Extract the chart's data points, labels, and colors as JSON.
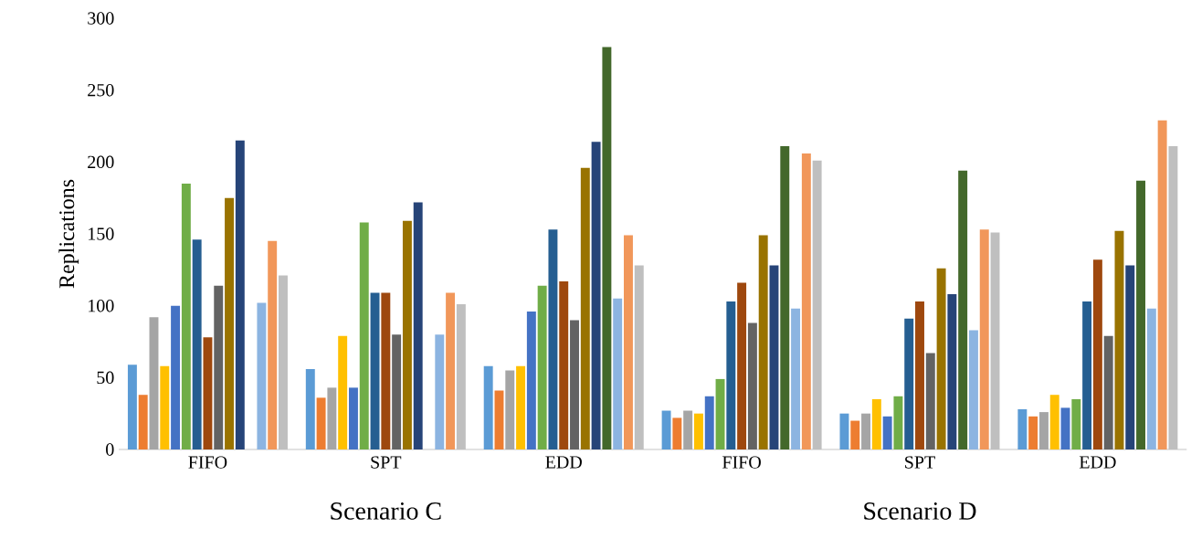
{
  "chart_data": {
    "type": "bar",
    "ylabel": "Replications",
    "categories": [
      "FIFO",
      "SPT",
      "EDD",
      "FIFO",
      "SPT",
      "EDD"
    ],
    "annotations": [
      "Scenario C",
      "Scenario D"
    ],
    "ylim": [
      0,
      300
    ],
    "yticks": [
      0,
      50,
      100,
      150,
      200,
      250,
      300
    ],
    "grid": false,
    "series": [
      {
        "color": "#5b9bd5",
        "values": [
          59,
          56,
          58,
          27,
          25,
          28
        ]
      },
      {
        "color": "#ed7d31",
        "values": [
          38,
          36,
          41,
          22,
          20,
          23
        ]
      },
      {
        "color": "#a5a5a5",
        "values": [
          92,
          43,
          55,
          27,
          25,
          26
        ]
      },
      {
        "color": "#ffc000",
        "values": [
          58,
          79,
          58,
          25,
          35,
          38
        ]
      },
      {
        "color": "#4472c4",
        "values": [
          100,
          43,
          96,
          37,
          23,
          29
        ]
      },
      {
        "color": "#70ad47",
        "values": [
          185,
          158,
          114,
          49,
          37,
          35
        ]
      },
      {
        "color": "#255e91",
        "values": [
          146,
          109,
          153,
          103,
          91,
          103
        ]
      },
      {
        "color": "#9e480e",
        "values": [
          78,
          109,
          117,
          116,
          103,
          132
        ]
      },
      {
        "color": "#636363",
        "values": [
          114,
          80,
          90,
          88,
          67,
          79
        ]
      },
      {
        "color": "#997300",
        "values": [
          175,
          159,
          196,
          149,
          126,
          152
        ]
      },
      {
        "color": "#264478",
        "values": [
          215,
          172,
          214,
          128,
          108,
          128
        ]
      },
      {
        "color": "#43682b",
        "values": [
          null,
          null,
          280,
          211,
          194,
          187
        ]
      },
      {
        "color": "#8cb4e1",
        "values": [
          102,
          80,
          105,
          98,
          83,
          98
        ]
      },
      {
        "color": "#f1975a",
        "values": [
          145,
          109,
          149,
          206,
          153,
          229
        ]
      },
      {
        "color": "#bfbfbf",
        "values": [
          121,
          101,
          128,
          201,
          151,
          211
        ]
      }
    ]
  }
}
